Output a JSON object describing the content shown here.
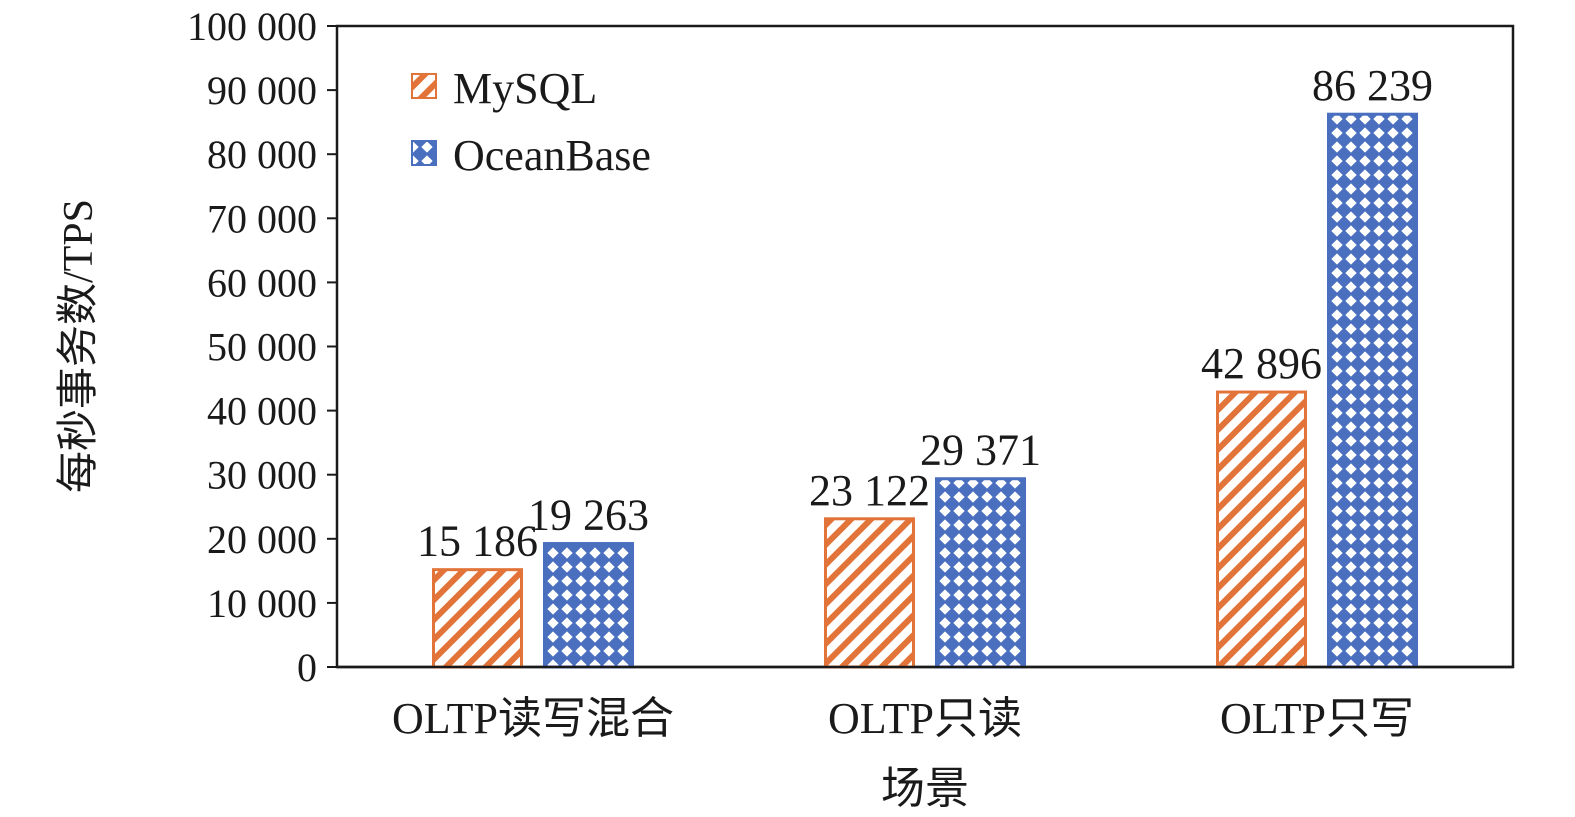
{
  "chart_data": {
    "type": "bar",
    "categories": [
      "OLTP读写混合",
      "OLTP只读",
      "OLTP只写"
    ],
    "series": [
      {
        "name": "MySQL",
        "values": [
          15186,
          23122,
          42896
        ],
        "color": "#e2743a",
        "pattern": "diagonal-stripes"
      },
      {
        "name": "OceanBase",
        "values": [
          19263,
          29371,
          86239
        ],
        "color": "#4a6fbf",
        "pattern": "checker-dots"
      }
    ],
    "data_labels": [
      [
        "15 186",
        "23 122",
        "42 896"
      ],
      [
        "19 263",
        "29 371",
        "86 239"
      ]
    ],
    "title": "",
    "xlabel": "场景",
    "ylabel": "每秒事务数/TPS",
    "ylim": [
      0,
      100000
    ],
    "yticks": [
      0,
      10000,
      20000,
      30000,
      40000,
      50000,
      60000,
      70000,
      80000,
      90000,
      100000
    ],
    "ytick_labels": [
      "0",
      "10 000",
      "20 000",
      "30 000",
      "40 000",
      "50 000",
      "60 000",
      "70 000",
      "80 000",
      "90 000",
      "100 000"
    ],
    "legend": {
      "position": "top-left",
      "entries": [
        "MySQL",
        "OceanBase"
      ]
    },
    "grid": false
  }
}
